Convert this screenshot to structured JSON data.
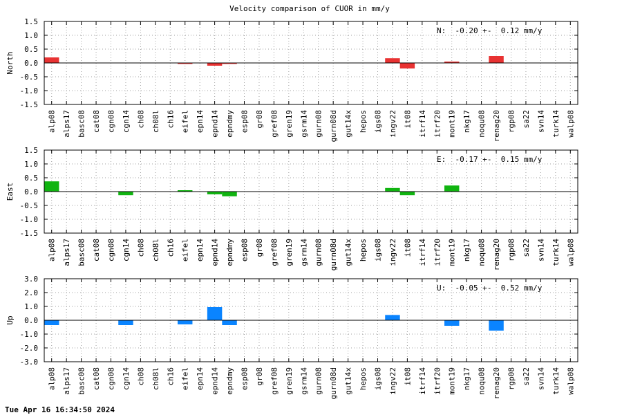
{
  "title": "Velocity comparison of CUOR in mm/y",
  "footer": "Tue Apr 16 16:34:50 2024",
  "chart_data": [
    {
      "type": "bar",
      "ylabel": "North",
      "ylim": [
        -1.5,
        1.5
      ],
      "yticks": [
        "1.5",
        "1.0",
        "0.5",
        "0.0",
        "-0.5",
        "-1.0",
        "-1.5"
      ],
      "color": "#e83232",
      "annotation": "N:  -0.20 +-  0.12 mm/y",
      "categories": [
        "alp08",
        "alps17",
        "basc08",
        "cat08",
        "cgn08",
        "cgn14",
        "ch08",
        "ch08l",
        "ch16",
        "eifel",
        "epn14",
        "epnd14",
        "epndmy",
        "esp08",
        "gr08",
        "gref08",
        "gren19",
        "gsrm14",
        "gurn08",
        "gurn08d",
        "gut14x",
        "hepos",
        "igs08",
        "ingv22",
        "it08",
        "itrf14",
        "itrf20",
        "mont19",
        "nkg17",
        "noqu08",
        "renag20",
        "rgp08",
        "sa22",
        "svn14",
        "turk14",
        "walp08"
      ],
      "values": [
        0.2,
        0,
        0,
        0,
        0,
        0,
        0,
        0,
        0,
        -0.02,
        0,
        -0.1,
        -0.02,
        0,
        0,
        0,
        0,
        0,
        0,
        0,
        0,
        0,
        0,
        0.17,
        -0.2,
        0,
        0,
        0.05,
        0,
        0,
        0.25,
        0,
        0,
        0,
        0,
        0
      ]
    },
    {
      "type": "bar",
      "ylabel": "East",
      "ylim": [
        -1.5,
        1.5
      ],
      "yticks": [
        "1.5",
        "1.0",
        "0.5",
        "0.0",
        "-0.5",
        "-1.0",
        "-1.5"
      ],
      "color": "#10b410",
      "annotation": "E:  -0.17 +-  0.15 mm/y",
      "categories": [
        "alp08",
        "alps17",
        "basc08",
        "cat08",
        "cgn08",
        "cgn14",
        "ch08",
        "ch08l",
        "ch16",
        "eifel",
        "epn14",
        "epnd14",
        "epndmy",
        "esp08",
        "gr08",
        "gref08",
        "gren19",
        "gsrm14",
        "gurn08",
        "gurn08d",
        "gut14x",
        "hepos",
        "igs08",
        "ingv22",
        "it08",
        "itrf14",
        "itrf20",
        "mont19",
        "nkg17",
        "noqu08",
        "renag20",
        "rgp08",
        "sa22",
        "svn14",
        "turk14",
        "walp08"
      ],
      "values": [
        0.37,
        0,
        0,
        0,
        0,
        -0.13,
        0,
        0,
        0,
        0.05,
        0,
        -0.1,
        -0.17,
        0,
        0,
        0,
        0,
        0,
        0,
        0,
        0,
        0,
        0,
        0.13,
        -0.13,
        0,
        0,
        0.22,
        0,
        0,
        0,
        0,
        0,
        0,
        0,
        0
      ]
    },
    {
      "type": "bar",
      "ylabel": "Up",
      "ylim": [
        -3.0,
        3.0
      ],
      "yticks": [
        "3.0",
        "2.0",
        "1.0",
        "0.0",
        "-1.0",
        "-2.0",
        "-3.0"
      ],
      "color": "#0a84ff",
      "annotation": "U:  -0.05 +-  0.52 mm/y",
      "categories": [
        "alp08",
        "alps17",
        "basc08",
        "cat08",
        "cgn08",
        "cgn14",
        "ch08",
        "ch08l",
        "ch16",
        "eifel",
        "epn14",
        "epnd14",
        "epndmy",
        "esp08",
        "gr08",
        "gref08",
        "gren19",
        "gsrm14",
        "gurn08",
        "gurn08d",
        "gut14x",
        "hepos",
        "igs08",
        "ingv22",
        "it08",
        "itrf14",
        "itrf20",
        "mont19",
        "nkg17",
        "noqu08",
        "renag20",
        "rgp08",
        "sa22",
        "svn14",
        "turk14",
        "walp08"
      ],
      "values": [
        -0.35,
        0,
        0,
        0,
        0,
        -0.35,
        0,
        0,
        0,
        -0.3,
        0,
        0.95,
        -0.35,
        0,
        0,
        0,
        0,
        0,
        0,
        0,
        0,
        0,
        0,
        0.38,
        0,
        0,
        0,
        -0.4,
        0,
        0,
        -0.75,
        0,
        0,
        0,
        0,
        0
      ]
    }
  ]
}
